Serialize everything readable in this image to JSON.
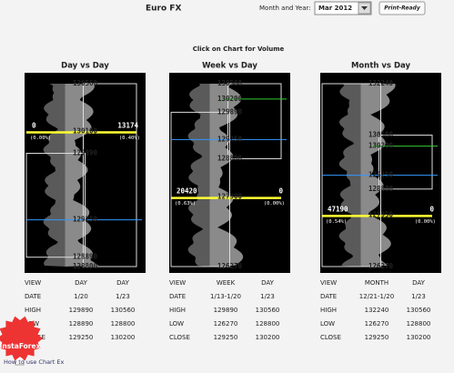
{
  "header": {
    "title": "Euro FX",
    "month_label": "Month and Year:",
    "month_value": "Mar 2012",
    "print_button": "Print-Ready",
    "instruction": "Click on Chart for Volume"
  },
  "panels": [
    {
      "title": "Day vs Day",
      "levels": [
        {
          "price": 130560,
          "color": "#ffff33"
        },
        {
          "price": 130100,
          "color": "#ffff33",
          "left": 0,
          "left_pct": "(0.00%)",
          "right": 13174,
          "right_pct": "(0.40%)"
        },
        {
          "price": 129890,
          "color": "#ffff33"
        },
        {
          "price": 129250,
          "color": "#3399ff"
        },
        {
          "price": 128890,
          "color": "#ffff33"
        },
        {
          "price": 128800,
          "color": "#ffff33"
        }
      ],
      "table": [
        [
          "VIEW",
          "DAY",
          "DAY"
        ],
        [
          "DATE",
          "1/20",
          "1/23"
        ],
        [
          "HIGH",
          129890,
          130560
        ],
        [
          "LOW",
          128890,
          128800
        ],
        [
          "CLOSE",
          129250,
          130200
        ]
      ]
    },
    {
      "title": "Week vs Day",
      "levels": [
        {
          "price": 130560,
          "color": "#ffff33"
        },
        {
          "price": 130200,
          "color": "#33cc33"
        },
        {
          "price": 129890,
          "color": "#ffff33"
        },
        {
          "price": 129250,
          "color": "#3399ff"
        },
        {
          "price": 128800,
          "color": "#ffff33"
        },
        {
          "price": 127900,
          "color": "#ffff33",
          "left": 20420,
          "left_pct": "(0.63%)",
          "right": 0,
          "right_pct": "(0.00%)"
        },
        {
          "price": 126270,
          "color": "#ffff33"
        }
      ],
      "table": [
        [
          "VIEW",
          "WEEK",
          "DAY"
        ],
        [
          "DATE",
          "1/13-1/20",
          "1/23"
        ],
        [
          "HIGH",
          129890,
          130560
        ],
        [
          "LOW",
          126270,
          128800
        ],
        [
          "CLOSE",
          129250,
          130200
        ]
      ]
    },
    {
      "title": "Month vs Day",
      "levels": [
        {
          "price": 132240,
          "color": "#ffff33"
        },
        {
          "price": 130560,
          "color": "#ffff33"
        },
        {
          "price": 130200,
          "color": "#33cc33"
        },
        {
          "price": 129250,
          "color": "#3399ff"
        },
        {
          "price": 128800,
          "color": "#ffff33"
        },
        {
          "price": 127950,
          "color": "#ffff33",
          "left": 47190,
          "left_pct": "(0.54%)",
          "right": 0,
          "right_pct": "(0.00%)"
        },
        {
          "price": 126270,
          "color": "#ffff33"
        }
      ],
      "table": [
        [
          "VIEW",
          "MONTH",
          "DAY"
        ],
        [
          "DATE",
          "12/21-1/20",
          "1/23"
        ],
        [
          "HIGH",
          132240,
          130560
        ],
        [
          "LOW",
          126270,
          128800
        ],
        [
          "CLOSE",
          129250,
          130200
        ]
      ]
    }
  ],
  "footer": {
    "help": "How to use Chart Ex",
    "logo": "InstaForex"
  }
}
